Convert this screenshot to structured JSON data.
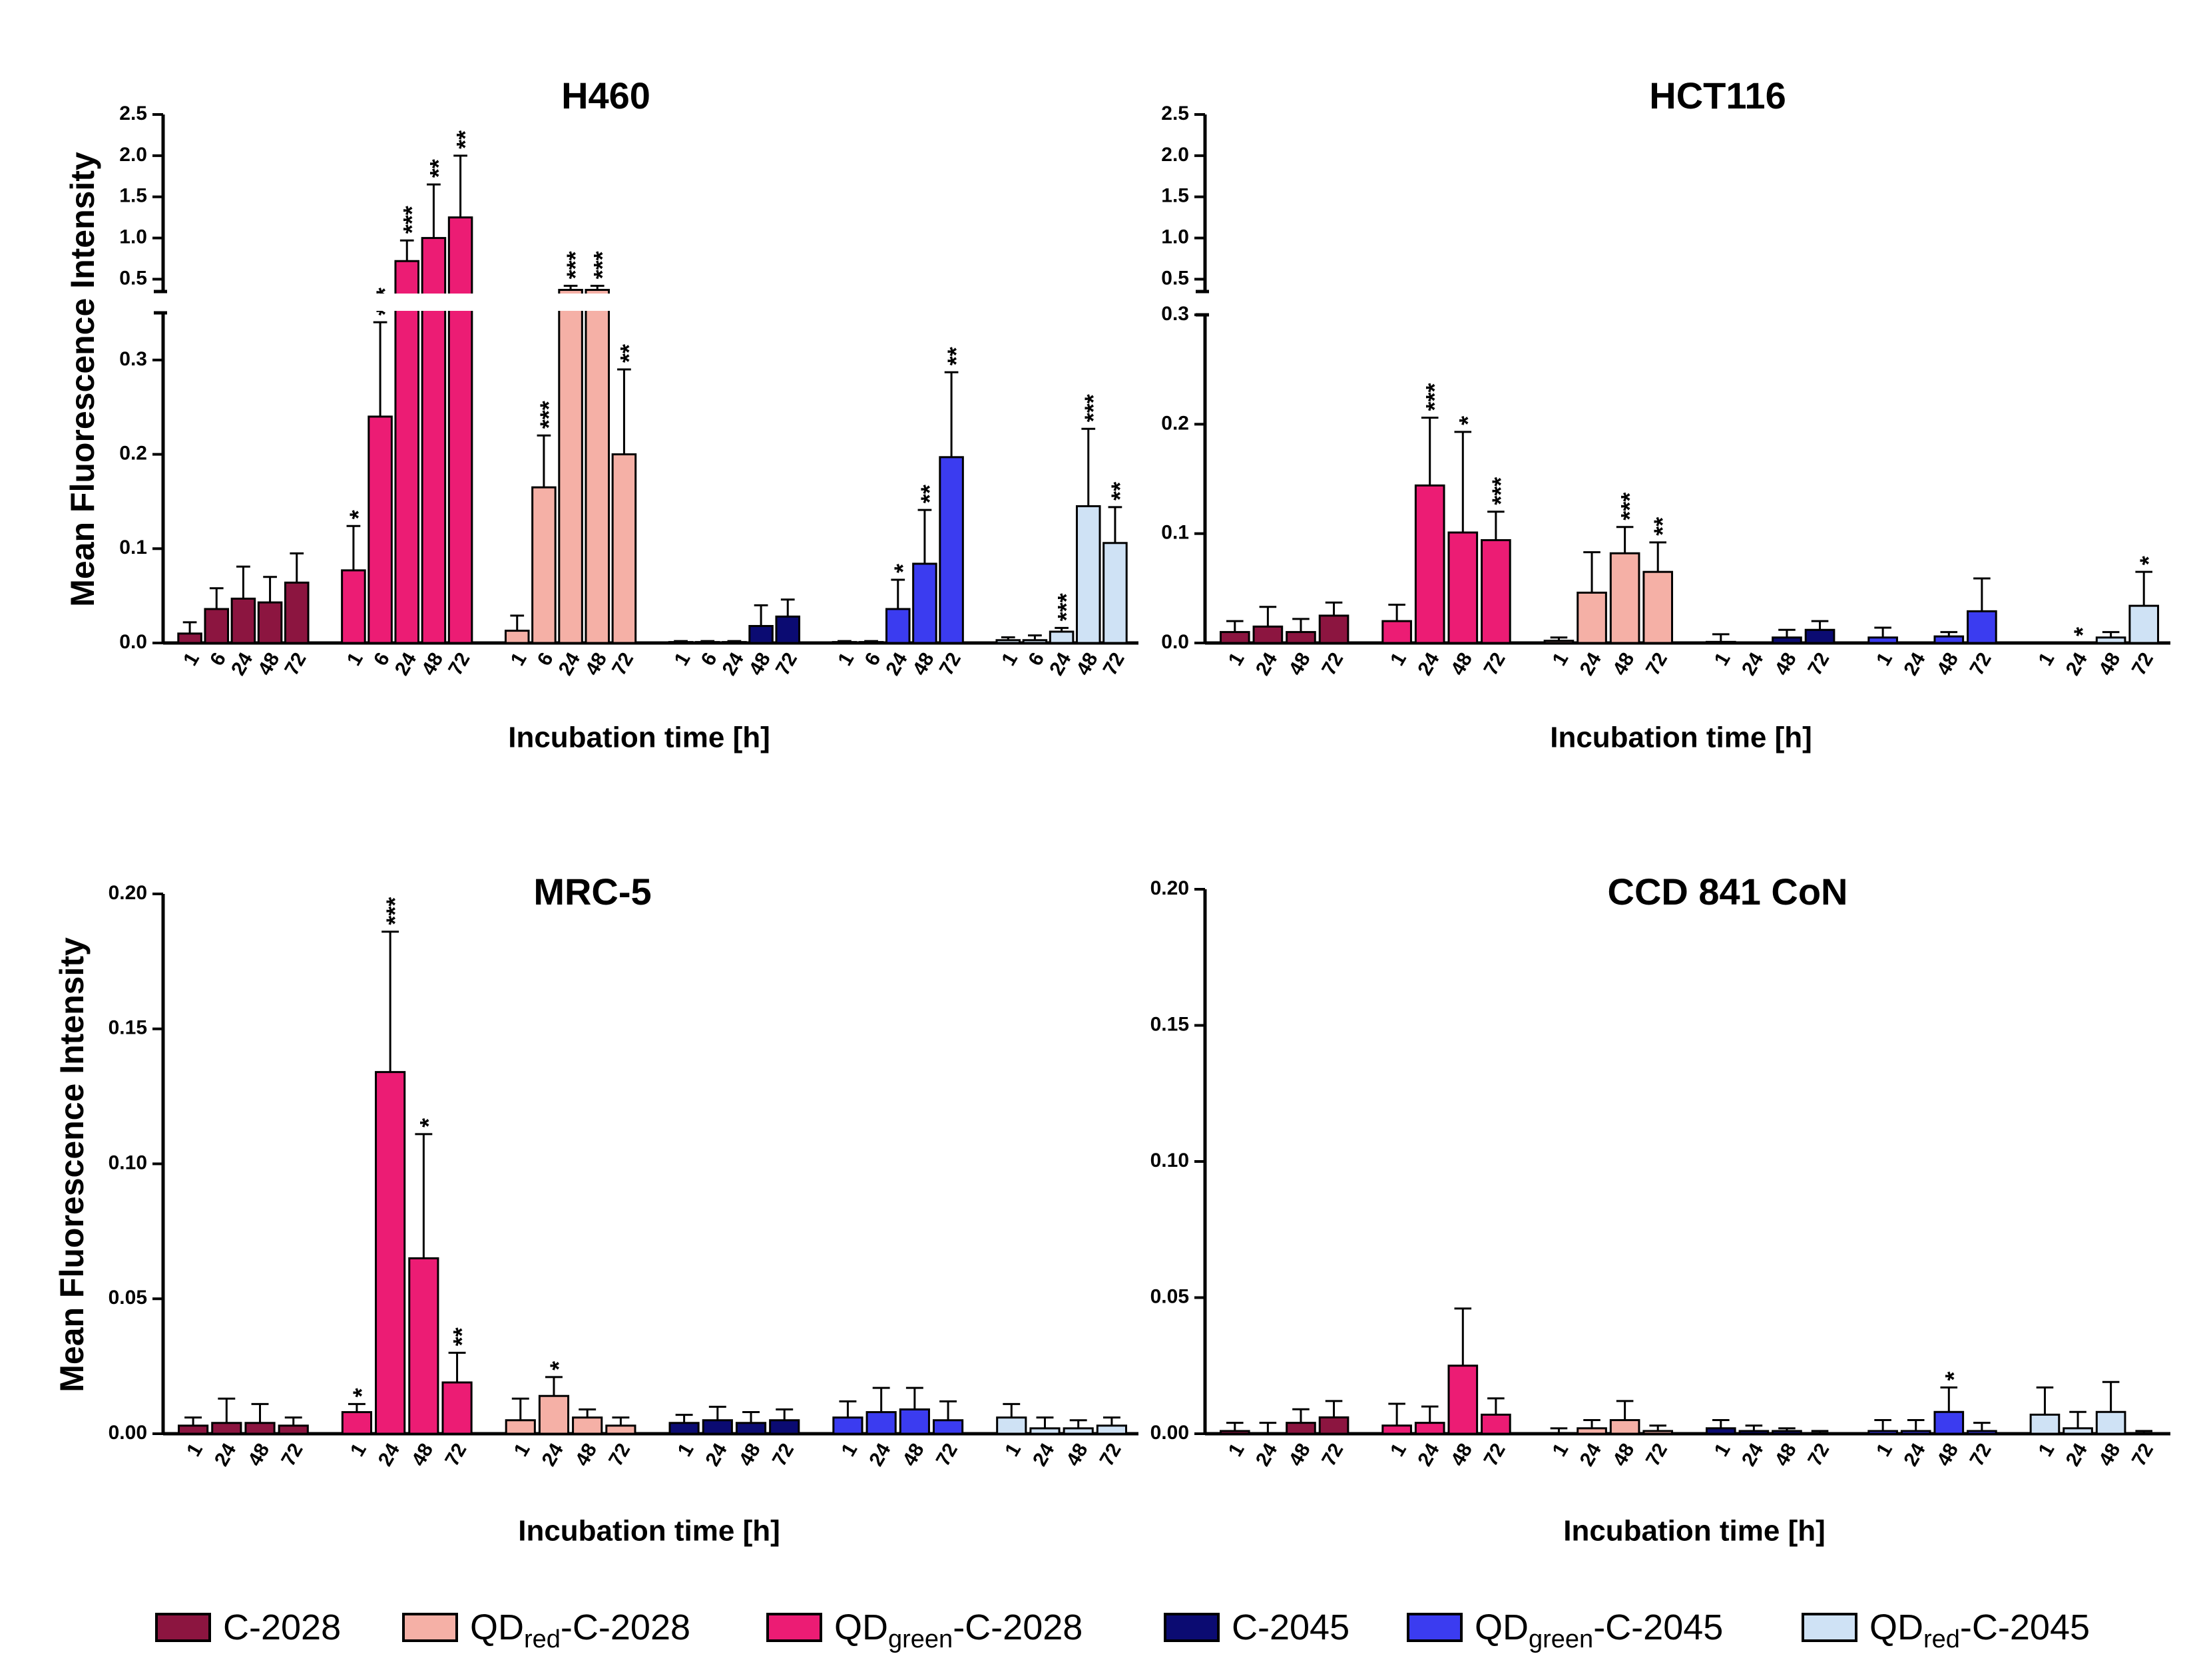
{
  "legend": [
    {
      "base": "C-2028",
      "pre": "",
      "sub": "",
      "post": "C-2028",
      "color": "#8c1540"
    },
    {
      "base": "QDred-C-2028",
      "pre": "QD",
      "sub": "red",
      "post": "-C-2028",
      "color": "#f5b0a6"
    },
    {
      "base": "QDgreen-C-2028",
      "pre": "QD",
      "sub": "green",
      "post": "-C-2028",
      "color": "#ec1c74"
    },
    {
      "base": "C-2045",
      "pre": "",
      "sub": "",
      "post": "C-2045",
      "color": "#0b0b72"
    },
    {
      "base": "QDgreen-C-2045",
      "pre": "QD",
      "sub": "green",
      "post": "-C-2045",
      "color": "#3b3cf0"
    },
    {
      "base": "QDred-C-2045",
      "pre": "QD",
      "sub": "red",
      "post": "-C-2045",
      "color": "#cfe2f5"
    }
  ],
  "chart_data": [
    {
      "type": "bar",
      "title": "H460",
      "ylabel": "Mean Fluorescence Intensity",
      "xlabel": "Incubation time [h]",
      "broken_axis": true,
      "ylim_lower": [
        0,
        0.35
      ],
      "yticks_lower": [
        "0.0",
        "0.1",
        "0.2",
        "0.3"
      ],
      "ylim_upper": [
        0.35,
        2.5
      ],
      "yticks_upper": [
        "0.5",
        "1.0",
        "1.5",
        "2.0",
        "2.5"
      ],
      "groups": [
        {
          "series": "C-2028",
          "timepoints": [
            "1",
            "6",
            "24",
            "48",
            "72"
          ],
          "values": [
            0.01,
            0.036,
            0.047,
            0.043,
            0.064
          ],
          "errors": [
            0.012,
            0.022,
            0.034,
            0.027,
            0.031
          ],
          "sig": [
            "",
            "",
            "",
            "",
            ""
          ]
        },
        {
          "series": "QDgreen-C-2028",
          "timepoints": [
            "1",
            "6",
            "24",
            "48",
            "72"
          ],
          "values": [
            0.077,
            0.24,
            0.72,
            1.0,
            1.25
          ],
          "errors": [
            0.047,
            0.1,
            0.25,
            0.65,
            0.75
          ],
          "sig": [
            "*",
            "***",
            "***",
            "**",
            "**"
          ]
        },
        {
          "series": "QDred-C-2028",
          "timepoints": [
            "1",
            "6",
            "24",
            "48",
            "72"
          ],
          "values": [
            0.013,
            0.165,
            0.37,
            0.37,
            0.2
          ],
          "errors": [
            0.016,
            0.055,
            0.05,
            0.05,
            0.09
          ],
          "sig": [
            "",
            "***",
            "***",
            "***",
            "**"
          ]
        },
        {
          "series": "C-2045",
          "timepoints": [
            "1",
            "6",
            "24",
            "48",
            "72"
          ],
          "values": [
            0.001,
            0.001,
            0.001,
            0.018,
            0.028
          ],
          "errors": [
            0.001,
            0.001,
            0.001,
            0.022,
            0.018
          ],
          "sig": [
            "",
            "",
            "",
            "",
            ""
          ]
        },
        {
          "series": "QDgreen-C-2045",
          "timepoints": [
            "1",
            "6",
            "24",
            "48",
            "72"
          ],
          "values": [
            0.001,
            0.001,
            0.036,
            0.084,
            0.197
          ],
          "errors": [
            0.001,
            0.001,
            0.031,
            0.057,
            0.09
          ],
          "sig": [
            "",
            "",
            "*",
            "**",
            "**"
          ]
        },
        {
          "series": "QDred-C-2045",
          "timepoints": [
            "1",
            "6",
            "24",
            "48",
            "72"
          ],
          "values": [
            0.003,
            0.003,
            0.012,
            0.145,
            0.106
          ],
          "errors": [
            0.003,
            0.005,
            0.004,
            0.082,
            0.038
          ],
          "sig": [
            "",
            "",
            "***",
            "***",
            "**"
          ]
        }
      ]
    },
    {
      "type": "bar",
      "title": "HCT116",
      "ylabel": "",
      "xlabel": "Incubation time [h]",
      "broken_axis": true,
      "ylim_lower": [
        0,
        0.3
      ],
      "yticks_lower": [
        "0.0",
        "0.1",
        "0.2",
        "0.3"
      ],
      "ylim_upper": [
        0.35,
        2.5
      ],
      "yticks_upper": [
        "0.5",
        "1.0",
        "1.5",
        "2.0",
        "2.5"
      ],
      "groups": [
        {
          "series": "C-2028",
          "timepoints": [
            "1",
            "24",
            "48",
            "72"
          ],
          "values": [
            0.01,
            0.015,
            0.01,
            0.025
          ],
          "errors": [
            0.01,
            0.018,
            0.012,
            0.012
          ],
          "sig": [
            "",
            "",
            "",
            ""
          ]
        },
        {
          "series": "QDgreen-C-2028",
          "timepoints": [
            "1",
            "24",
            "48",
            "72"
          ],
          "values": [
            0.02,
            0.144,
            0.101,
            0.094
          ],
          "errors": [
            0.015,
            0.062,
            0.092,
            0.026
          ],
          "sig": [
            "",
            "***",
            "*",
            "***"
          ]
        },
        {
          "series": "QDred-C-2028",
          "timepoints": [
            "1",
            "24",
            "48",
            "72"
          ],
          "values": [
            0.002,
            0.046,
            0.082,
            0.065
          ],
          "errors": [
            0.003,
            0.037,
            0.024,
            0.027
          ],
          "sig": [
            "",
            "",
            "***",
            "**"
          ]
        },
        {
          "series": "C-2045",
          "timepoints": [
            "1",
            "24",
            "48",
            "72"
          ],
          "values": [
            0.001,
            0.0,
            0.005,
            0.012
          ],
          "errors": [
            0.007,
            0.0,
            0.007,
            0.008
          ],
          "sig": [
            "",
            "",
            "",
            ""
          ]
        },
        {
          "series": "QDgreen-C-2045",
          "timepoints": [
            "1",
            "24",
            "48",
            "72"
          ],
          "values": [
            0.005,
            0.0,
            0.006,
            0.029
          ],
          "errors": [
            0.009,
            0.0,
            0.004,
            0.03
          ],
          "sig": [
            "",
            "",
            "",
            ""
          ]
        },
        {
          "series": "QDred-C-2045",
          "timepoints": [
            "1",
            "24",
            "48",
            "72"
          ],
          "values": [
            0.0,
            0.0,
            0.005,
            0.034
          ],
          "errors": [
            0.0,
            0.0,
            0.005,
            0.031
          ],
          "sig": [
            "",
            "*",
            "",
            "*"
          ]
        }
      ]
    },
    {
      "type": "bar",
      "title": "MRC-5",
      "ylabel": "Mean Fluorescence Intensity",
      "xlabel": "Incubation time [h]",
      "broken_axis": false,
      "ylim": [
        0,
        0.2
      ],
      "yticks": [
        "0.00",
        "0.05",
        "0.10",
        "0.15",
        "0.20"
      ],
      "groups": [
        {
          "series": "C-2028",
          "timepoints": [
            "1",
            "24",
            "48",
            "72"
          ],
          "values": [
            0.003,
            0.004,
            0.004,
            0.003
          ],
          "errors": [
            0.003,
            0.009,
            0.007,
            0.003
          ],
          "sig": [
            "",
            "",
            "",
            ""
          ]
        },
        {
          "series": "QDgreen-C-2028",
          "timepoints": [
            "1",
            "24",
            "48",
            "72"
          ],
          "values": [
            0.008,
            0.134,
            0.065,
            0.019
          ],
          "errors": [
            0.003,
            0.052,
            0.046,
            0.011
          ],
          "sig": [
            "*",
            "***",
            "*",
            "**"
          ]
        },
        {
          "series": "QDred-C-2028",
          "timepoints": [
            "1",
            "24",
            "48",
            "72"
          ],
          "values": [
            0.005,
            0.014,
            0.006,
            0.003
          ],
          "errors": [
            0.008,
            0.007,
            0.003,
            0.003
          ],
          "sig": [
            "",
            "*",
            "",
            ""
          ]
        },
        {
          "series": "C-2045",
          "timepoints": [
            "1",
            "24",
            "48",
            "72"
          ],
          "values": [
            0.004,
            0.005,
            0.004,
            0.005
          ],
          "errors": [
            0.003,
            0.005,
            0.004,
            0.004
          ],
          "sig": [
            "",
            "",
            "",
            ""
          ]
        },
        {
          "series": "QDgreen-C-2045",
          "timepoints": [
            "1",
            "24",
            "48",
            "72"
          ],
          "values": [
            0.006,
            0.008,
            0.009,
            0.005
          ],
          "errors": [
            0.006,
            0.009,
            0.008,
            0.007
          ],
          "sig": [
            "",
            "",
            "",
            ""
          ]
        },
        {
          "series": "QDred-C-2045",
          "timepoints": [
            "1",
            "24",
            "48",
            "72"
          ],
          "values": [
            0.006,
            0.002,
            0.002,
            0.003
          ],
          "errors": [
            0.005,
            0.004,
            0.003,
            0.003
          ],
          "sig": [
            "",
            "",
            "",
            ""
          ]
        }
      ]
    },
    {
      "type": "bar",
      "title": "CCD 841 CoN",
      "ylabel": "",
      "xlabel": "Incubation time [h]",
      "broken_axis": false,
      "ylim": [
        0,
        0.2
      ],
      "yticks": [
        "0.00",
        "0.05",
        "0.10",
        "0.15",
        "0.20"
      ],
      "groups": [
        {
          "series": "C-2028",
          "timepoints": [
            "1",
            "24",
            "48",
            "72"
          ],
          "values": [
            0.001,
            0.0,
            0.004,
            0.006
          ],
          "errors": [
            0.003,
            0.004,
            0.005,
            0.006
          ],
          "sig": [
            "",
            "",
            "",
            ""
          ]
        },
        {
          "series": "QDgreen-C-2028",
          "timepoints": [
            "1",
            "24",
            "48",
            "72"
          ],
          "values": [
            0.003,
            0.004,
            0.025,
            0.007
          ],
          "errors": [
            0.008,
            0.006,
            0.021,
            0.006
          ],
          "sig": [
            "",
            "",
            "",
            ""
          ]
        },
        {
          "series": "QDred-C-2028",
          "timepoints": [
            "1",
            "24",
            "48",
            "72"
          ],
          "values": [
            0.0,
            0.002,
            0.005,
            0.001
          ],
          "errors": [
            0.002,
            0.003,
            0.007,
            0.002
          ],
          "sig": [
            "",
            "",
            "",
            ""
          ]
        },
        {
          "series": "C-2045",
          "timepoints": [
            "1",
            "24",
            "48",
            "72"
          ],
          "values": [
            0.002,
            0.001,
            0.001,
            0.0
          ],
          "errors": [
            0.003,
            0.002,
            0.001,
            0.001
          ],
          "sig": [
            "",
            "",
            "",
            ""
          ]
        },
        {
          "series": "QDgreen-C-2045",
          "timepoints": [
            "1",
            "24",
            "48",
            "72"
          ],
          "values": [
            0.001,
            0.001,
            0.008,
            0.001
          ],
          "errors": [
            0.004,
            0.004,
            0.009,
            0.003
          ],
          "sig": [
            "",
            "",
            "*",
            ""
          ]
        },
        {
          "series": "QDred-C-2045",
          "timepoints": [
            "1",
            "24",
            "48",
            "72"
          ],
          "values": [
            0.007,
            0.002,
            0.008,
            0.0
          ],
          "errors": [
            0.01,
            0.006,
            0.011,
            0.001
          ],
          "sig": [
            "",
            "",
            "",
            ""
          ]
        }
      ]
    }
  ]
}
